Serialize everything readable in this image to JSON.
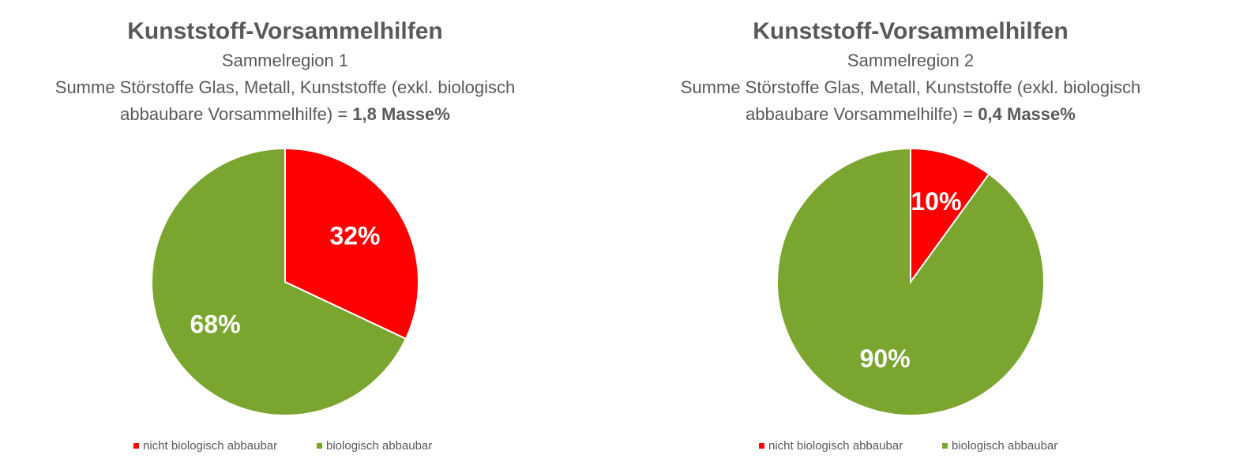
{
  "chart_data": [
    {
      "type": "pie",
      "title": "Kunststoff-Vorsammelhilfen",
      "subtitle": "Sammelregion 1",
      "description": "Summe Störstoffe Glas, Metall, Kunststoffe (exkl. biologisch abbaubare Vorsammelhilfe) = ",
      "highlight": "1,8 Masse%",
      "categories": [
        "nicht biologisch abbaubar",
        "biologisch abbaubar"
      ],
      "values": [
        32,
        68
      ],
      "value_labels": [
        "32%",
        "68%"
      ],
      "colors": [
        "#ff0000",
        "#7aa52f"
      ],
      "legend": "bottom"
    },
    {
      "type": "pie",
      "title": "Kunststoff-Vorsammelhilfen",
      "subtitle": "Sammelregion 2",
      "description": "Summe Störstoffe Glas, Metall, Kunststoffe (exkl. biologisch abbaubare Vorsammelhilfe) = ",
      "highlight": "0,4 Masse%",
      "categories": [
        "nicht biologisch abbaubar",
        "biologisch abbaubar"
      ],
      "values": [
        10,
        90
      ],
      "value_labels": [
        "10%",
        "90%"
      ],
      "colors": [
        "#ff0000",
        "#7aa52f"
      ],
      "legend": "bottom"
    }
  ]
}
